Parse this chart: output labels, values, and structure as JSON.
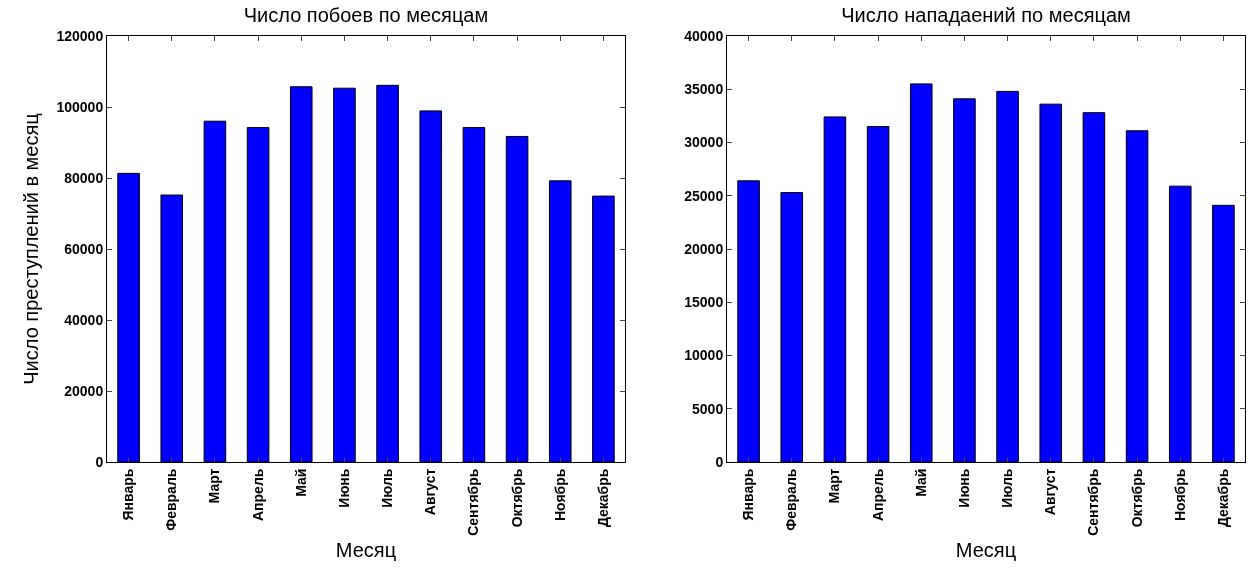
{
  "chart_data": [
    {
      "type": "bar",
      "title": "Число побоев по месяцам",
      "xlabel": "Месяц",
      "ylabel": "Число преступлений в месяц",
      "categories": [
        "Январь",
        "Февраль",
        "Март",
        "Апрель",
        "Май",
        "Июнь",
        "Июль",
        "Август",
        "Сентябрь",
        "Октябрь",
        "Ноябрь",
        "Декабрь"
      ],
      "values": [
        81300,
        75200,
        96000,
        94200,
        105700,
        105300,
        106100,
        98900,
        94200,
        91700,
        79200,
        74900
      ],
      "color": "#0000ff",
      "ylim": [
        0,
        120000
      ],
      "yticks": [
        0,
        20000,
        40000,
        60000,
        80000,
        100000,
        120000
      ],
      "grid": false
    },
    {
      "type": "bar",
      "title": "Число нападаений по месяцам",
      "xlabel": "Месяц",
      "categories": [
        "Январь",
        "Февраль",
        "Март",
        "Апрель",
        "Май",
        "Июнь",
        "Июль",
        "Август",
        "Сентябрь",
        "Октябрь",
        "Ноябрь",
        "Декабрь"
      ],
      "values": [
        26400,
        25300,
        32400,
        31500,
        35500,
        34100,
        34800,
        33600,
        32800,
        31100,
        25900,
        24100
      ],
      "color": "#0000ff",
      "ylim": [
        0,
        40000
      ],
      "yticks": [
        0,
        5000,
        10000,
        15000,
        20000,
        25000,
        30000,
        35000,
        40000
      ],
      "grid": false
    }
  ]
}
